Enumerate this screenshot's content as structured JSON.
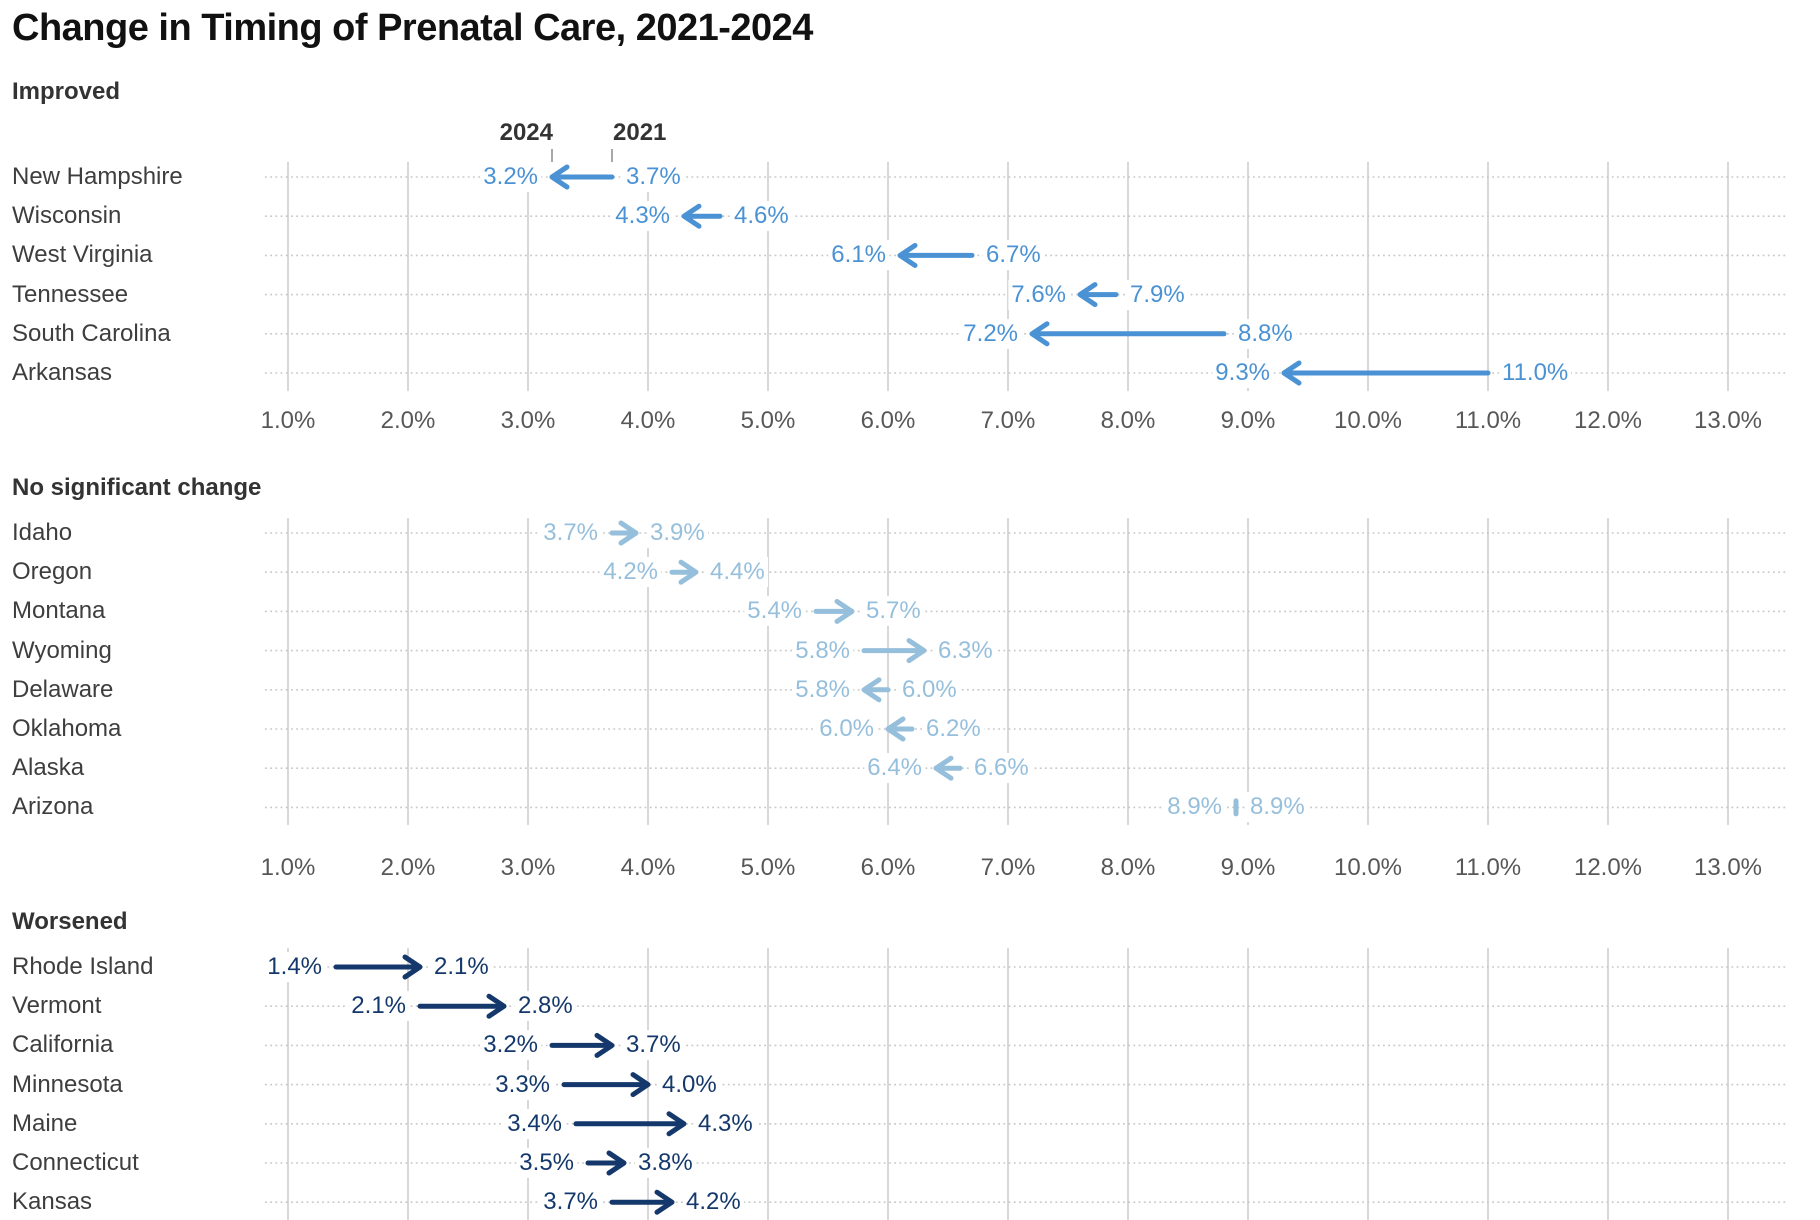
{
  "chart_data": {
    "type": "arrow-dot-plot",
    "title": "Change in Timing of Prenatal Care, 2021-2024",
    "column_headers": {
      "left": "2024",
      "right": "2021"
    },
    "axis": {
      "min": 1.0,
      "max": 13.0,
      "step": 1.0,
      "unit": "%",
      "tick_labels": [
        "1.0%",
        "2.0%",
        "3.0%",
        "4.0%",
        "5.0%",
        "6.0%",
        "7.0%",
        "8.0%",
        "9.0%",
        "10.0%",
        "11.0%",
        "12.0%",
        "13.0%"
      ]
    },
    "groups": [
      {
        "label": "Improved",
        "color": "#4a92d4",
        "show_axis": true,
        "rows": [
          {
            "state": "New Hampshire",
            "y2021": 3.7,
            "y2024": 3.2,
            "label_2021": "3.7%",
            "label_2024": "3.2%",
            "direction": "left"
          },
          {
            "state": "Wisconsin",
            "y2021": 4.6,
            "y2024": 4.3,
            "label_2021": "4.6%",
            "label_2024": "4.3%",
            "direction": "left"
          },
          {
            "state": "West Virginia",
            "y2021": 6.7,
            "y2024": 6.1,
            "label_2021": "6.7%",
            "label_2024": "6.1%",
            "direction": "left"
          },
          {
            "state": "Tennessee",
            "y2021": 7.9,
            "y2024": 7.6,
            "label_2021": "7.9%",
            "label_2024": "7.6%",
            "direction": "left"
          },
          {
            "state": "South Carolina",
            "y2021": 8.8,
            "y2024": 7.2,
            "label_2021": "8.8%",
            "label_2024": "7.2%",
            "direction": "left"
          },
          {
            "state": "Arkansas",
            "y2021": 11.0,
            "y2024": 9.3,
            "label_2021": "11.0%",
            "label_2024": "9.3%",
            "direction": "left"
          }
        ]
      },
      {
        "label": "No significant change",
        "color": "#96bfdc",
        "show_axis": true,
        "rows": [
          {
            "state": "Idaho",
            "y2021": 3.7,
            "y2024": 3.9,
            "label_2021": "3.7%",
            "label_2024": "3.9%",
            "direction": "right"
          },
          {
            "state": "Oregon",
            "y2021": 4.2,
            "y2024": 4.4,
            "label_2021": "4.2%",
            "label_2024": "4.4%",
            "direction": "right"
          },
          {
            "state": "Montana",
            "y2021": 5.4,
            "y2024": 5.7,
            "label_2021": "5.4%",
            "label_2024": "5.7%",
            "direction": "right"
          },
          {
            "state": "Wyoming",
            "y2021": 5.8,
            "y2024": 6.3,
            "label_2021": "5.8%",
            "label_2024": "6.3%",
            "direction": "right"
          },
          {
            "state": "Delaware",
            "y2021": 6.0,
            "y2024": 5.8,
            "label_2021": "6.0%",
            "label_2024": "5.8%",
            "direction": "left"
          },
          {
            "state": "Oklahoma",
            "y2021": 6.2,
            "y2024": 6.0,
            "label_2021": "6.2%",
            "label_2024": "6.0%",
            "direction": "left"
          },
          {
            "state": "Alaska",
            "y2021": 6.6,
            "y2024": 6.4,
            "label_2021": "6.6%",
            "label_2024": "6.4%",
            "direction": "left"
          },
          {
            "state": "Arizona",
            "y2021": 8.9,
            "y2024": 8.9,
            "label_2021": "8.9%",
            "label_2024": "8.9%",
            "direction": "none"
          }
        ]
      },
      {
        "label": "Worsened",
        "color": "#14386b",
        "show_axis": false,
        "rows": [
          {
            "state": "Rhode Island",
            "y2021": 1.4,
            "y2024": 2.1,
            "label_2021": "1.4%",
            "label_2024": "2.1%",
            "direction": "right"
          },
          {
            "state": "Vermont",
            "y2021": 2.1,
            "y2024": 2.8,
            "label_2021": "2.1%",
            "label_2024": "2.8%",
            "direction": "right"
          },
          {
            "state": "California",
            "y2021": 3.2,
            "y2024": 3.7,
            "label_2021": "3.2%",
            "label_2024": "3.7%",
            "direction": "right"
          },
          {
            "state": "Minnesota",
            "y2021": 3.3,
            "y2024": 4.0,
            "label_2021": "3.3%",
            "label_2024": "4.0%",
            "direction": "right"
          },
          {
            "state": "Maine",
            "y2021": 3.4,
            "y2024": 4.3,
            "label_2021": "3.4%",
            "label_2024": "4.3%",
            "direction": "right"
          },
          {
            "state": "Connecticut",
            "y2021": 3.5,
            "y2024": 3.8,
            "label_2021": "3.5%",
            "label_2024": "3.8%",
            "direction": "right"
          },
          {
            "state": "Kansas",
            "y2021": 3.7,
            "y2024": 4.2,
            "label_2021": "3.7%",
            "label_2024": "4.2%",
            "direction": "right"
          }
        ]
      }
    ],
    "style_colors": {
      "improved": "#4a92d4",
      "no_significant_change": "#96bfdc",
      "worsened": "#14386b",
      "gridline": "#cbcbcb",
      "row_dotted_line": "#c8c8c8"
    }
  }
}
